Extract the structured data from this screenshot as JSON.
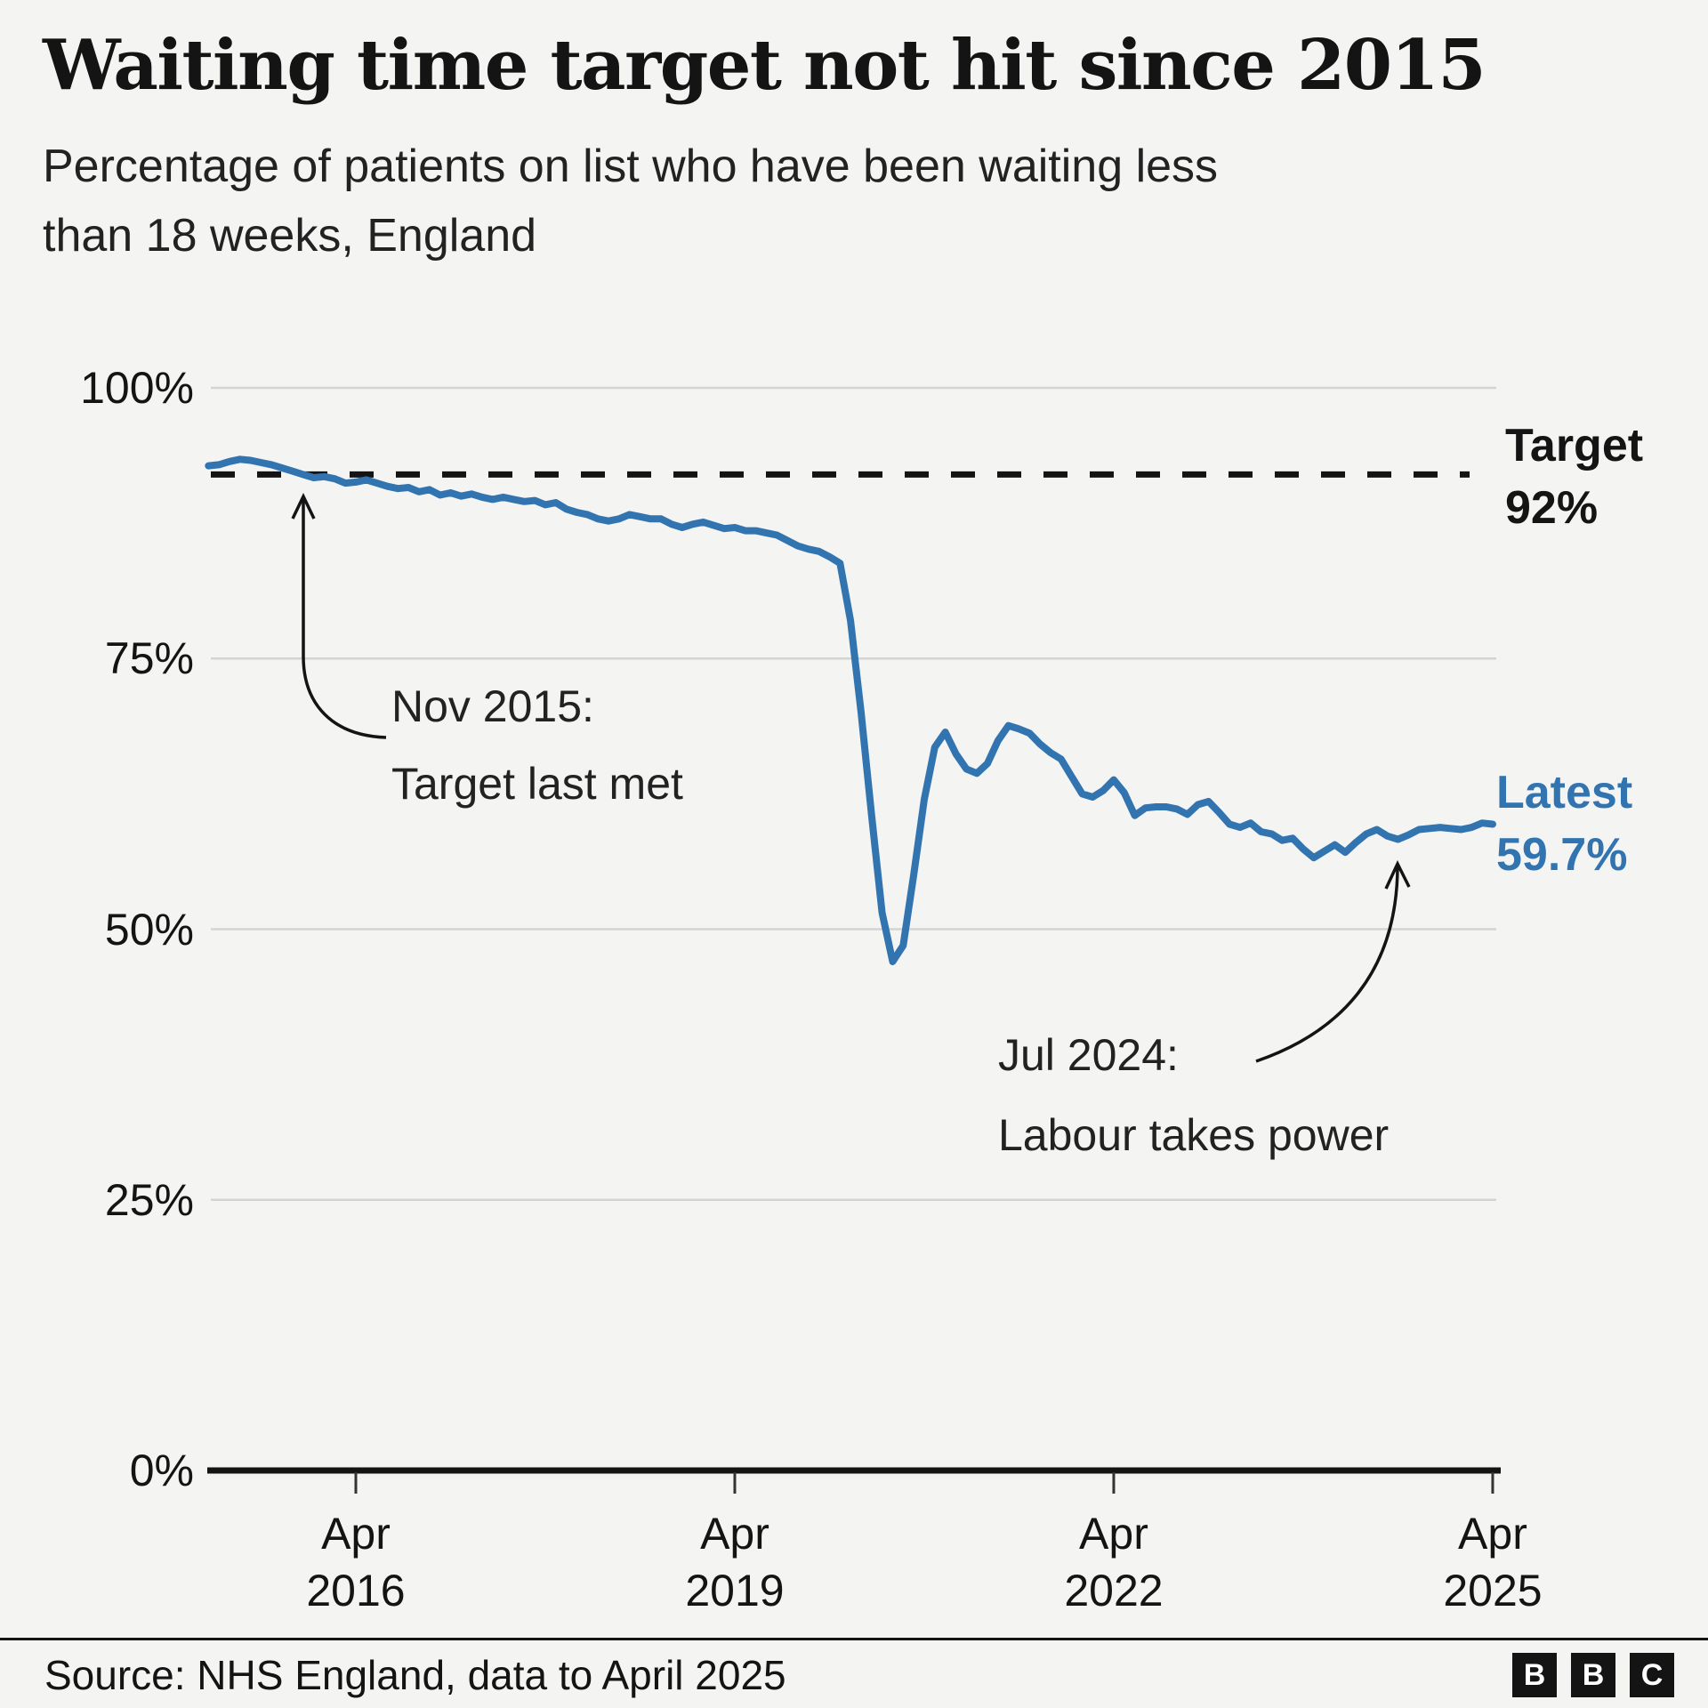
{
  "header": {
    "subtitle_line1": "Percentage of patients on list who have been waiting less",
    "subtitle_line2": "than 18 weeks, England"
  },
  "chart_data": {
    "type": "line",
    "title": "Waiting time target not hit since 2015",
    "subtitle": "Percentage of patients on list who have been waiting less than 18 weeks, England",
    "unit": "%",
    "ylim": [
      0,
      100
    ],
    "grid": true,
    "x_start": "Feb 2015",
    "x_end": "Apr 2025",
    "frequency": "monthly",
    "y_ticks": [
      {
        "value": 100,
        "label": "100%"
      },
      {
        "value": 75,
        "label": "75%"
      },
      {
        "value": 50,
        "label": "50%"
      },
      {
        "value": 25,
        "label": "25%"
      },
      {
        "value": 0,
        "label": "0%"
      }
    ],
    "x_ticks": [
      {
        "month": "Apr",
        "year": "2016",
        "month_index": 14
      },
      {
        "month": "Apr",
        "year": "2019",
        "month_index": 50
      },
      {
        "month": "Apr",
        "year": "2022",
        "month_index": 86
      },
      {
        "month": "Apr",
        "year": "2025",
        "month_index": 122
      }
    ],
    "target": {
      "value": 92,
      "style": "dashed",
      "label_line1": "Target",
      "label_line2": "92%"
    },
    "latest": {
      "value": 59.7,
      "label_line1": "Latest",
      "label_line2": "59.7%"
    },
    "series": [
      {
        "name": "Percentage waiting less than 18 weeks",
        "values": [
          92.8,
          92.9,
          93.2,
          93.4,
          93.3,
          93.1,
          92.9,
          92.6,
          92.3,
          92.0,
          91.7,
          91.8,
          91.6,
          91.2,
          91.3,
          91.5,
          91.2,
          90.9,
          90.7,
          90.8,
          90.4,
          90.6,
          90.1,
          90.3,
          90.0,
          90.2,
          89.9,
          89.7,
          89.9,
          89.7,
          89.5,
          89.6,
          89.2,
          89.4,
          88.8,
          88.5,
          88.3,
          87.9,
          87.7,
          87.9,
          88.3,
          88.1,
          87.9,
          87.9,
          87.4,
          87.1,
          87.4,
          87.6,
          87.3,
          87.0,
          87.1,
          86.8,
          86.8,
          86.6,
          86.4,
          85.9,
          85.4,
          85.1,
          84.9,
          84.4,
          83.8,
          78.5,
          70.0,
          60.5,
          51.5,
          47.0,
          48.5,
          55.0,
          62.0,
          66.8,
          68.2,
          66.2,
          64.8,
          64.4,
          65.3,
          67.4,
          68.8,
          68.5,
          68.1,
          67.1,
          66.3,
          65.7,
          64.1,
          62.5,
          62.2,
          62.8,
          63.8,
          62.6,
          60.5,
          61.2,
          61.3,
          61.3,
          61.1,
          60.6,
          61.5,
          61.8,
          60.8,
          59.7,
          59.4,
          59.8,
          59.0,
          58.8,
          58.2,
          58.4,
          57.4,
          56.6,
          57.2,
          57.8,
          57.1,
          58.0,
          58.8,
          59.2,
          58.6,
          58.3,
          58.7,
          59.2,
          59.3,
          59.4,
          59.3,
          59.2,
          59.4,
          59.8,
          59.7
        ]
      }
    ],
    "annotations": [
      {
        "id": "nov2015",
        "line1": "Nov 2015:",
        "line2": "Target last met",
        "point_month_index": 9,
        "point_value": 92.0
      },
      {
        "id": "jul2024",
        "line1": "Jul 2024:",
        "line2": "Labour takes power",
        "point_month_index": 113,
        "point_value": 58.3
      }
    ]
  },
  "footer": {
    "source": "Source: NHS England, data to April 2025",
    "logo_letters": [
      "B",
      "B",
      "C"
    ]
  },
  "colors": {
    "accent_blue": "#3274B0",
    "ink": "#141414",
    "text": "#222222",
    "grid": "#D4D4D4",
    "tick": "#333333",
    "background": "#F4F4F3"
  }
}
